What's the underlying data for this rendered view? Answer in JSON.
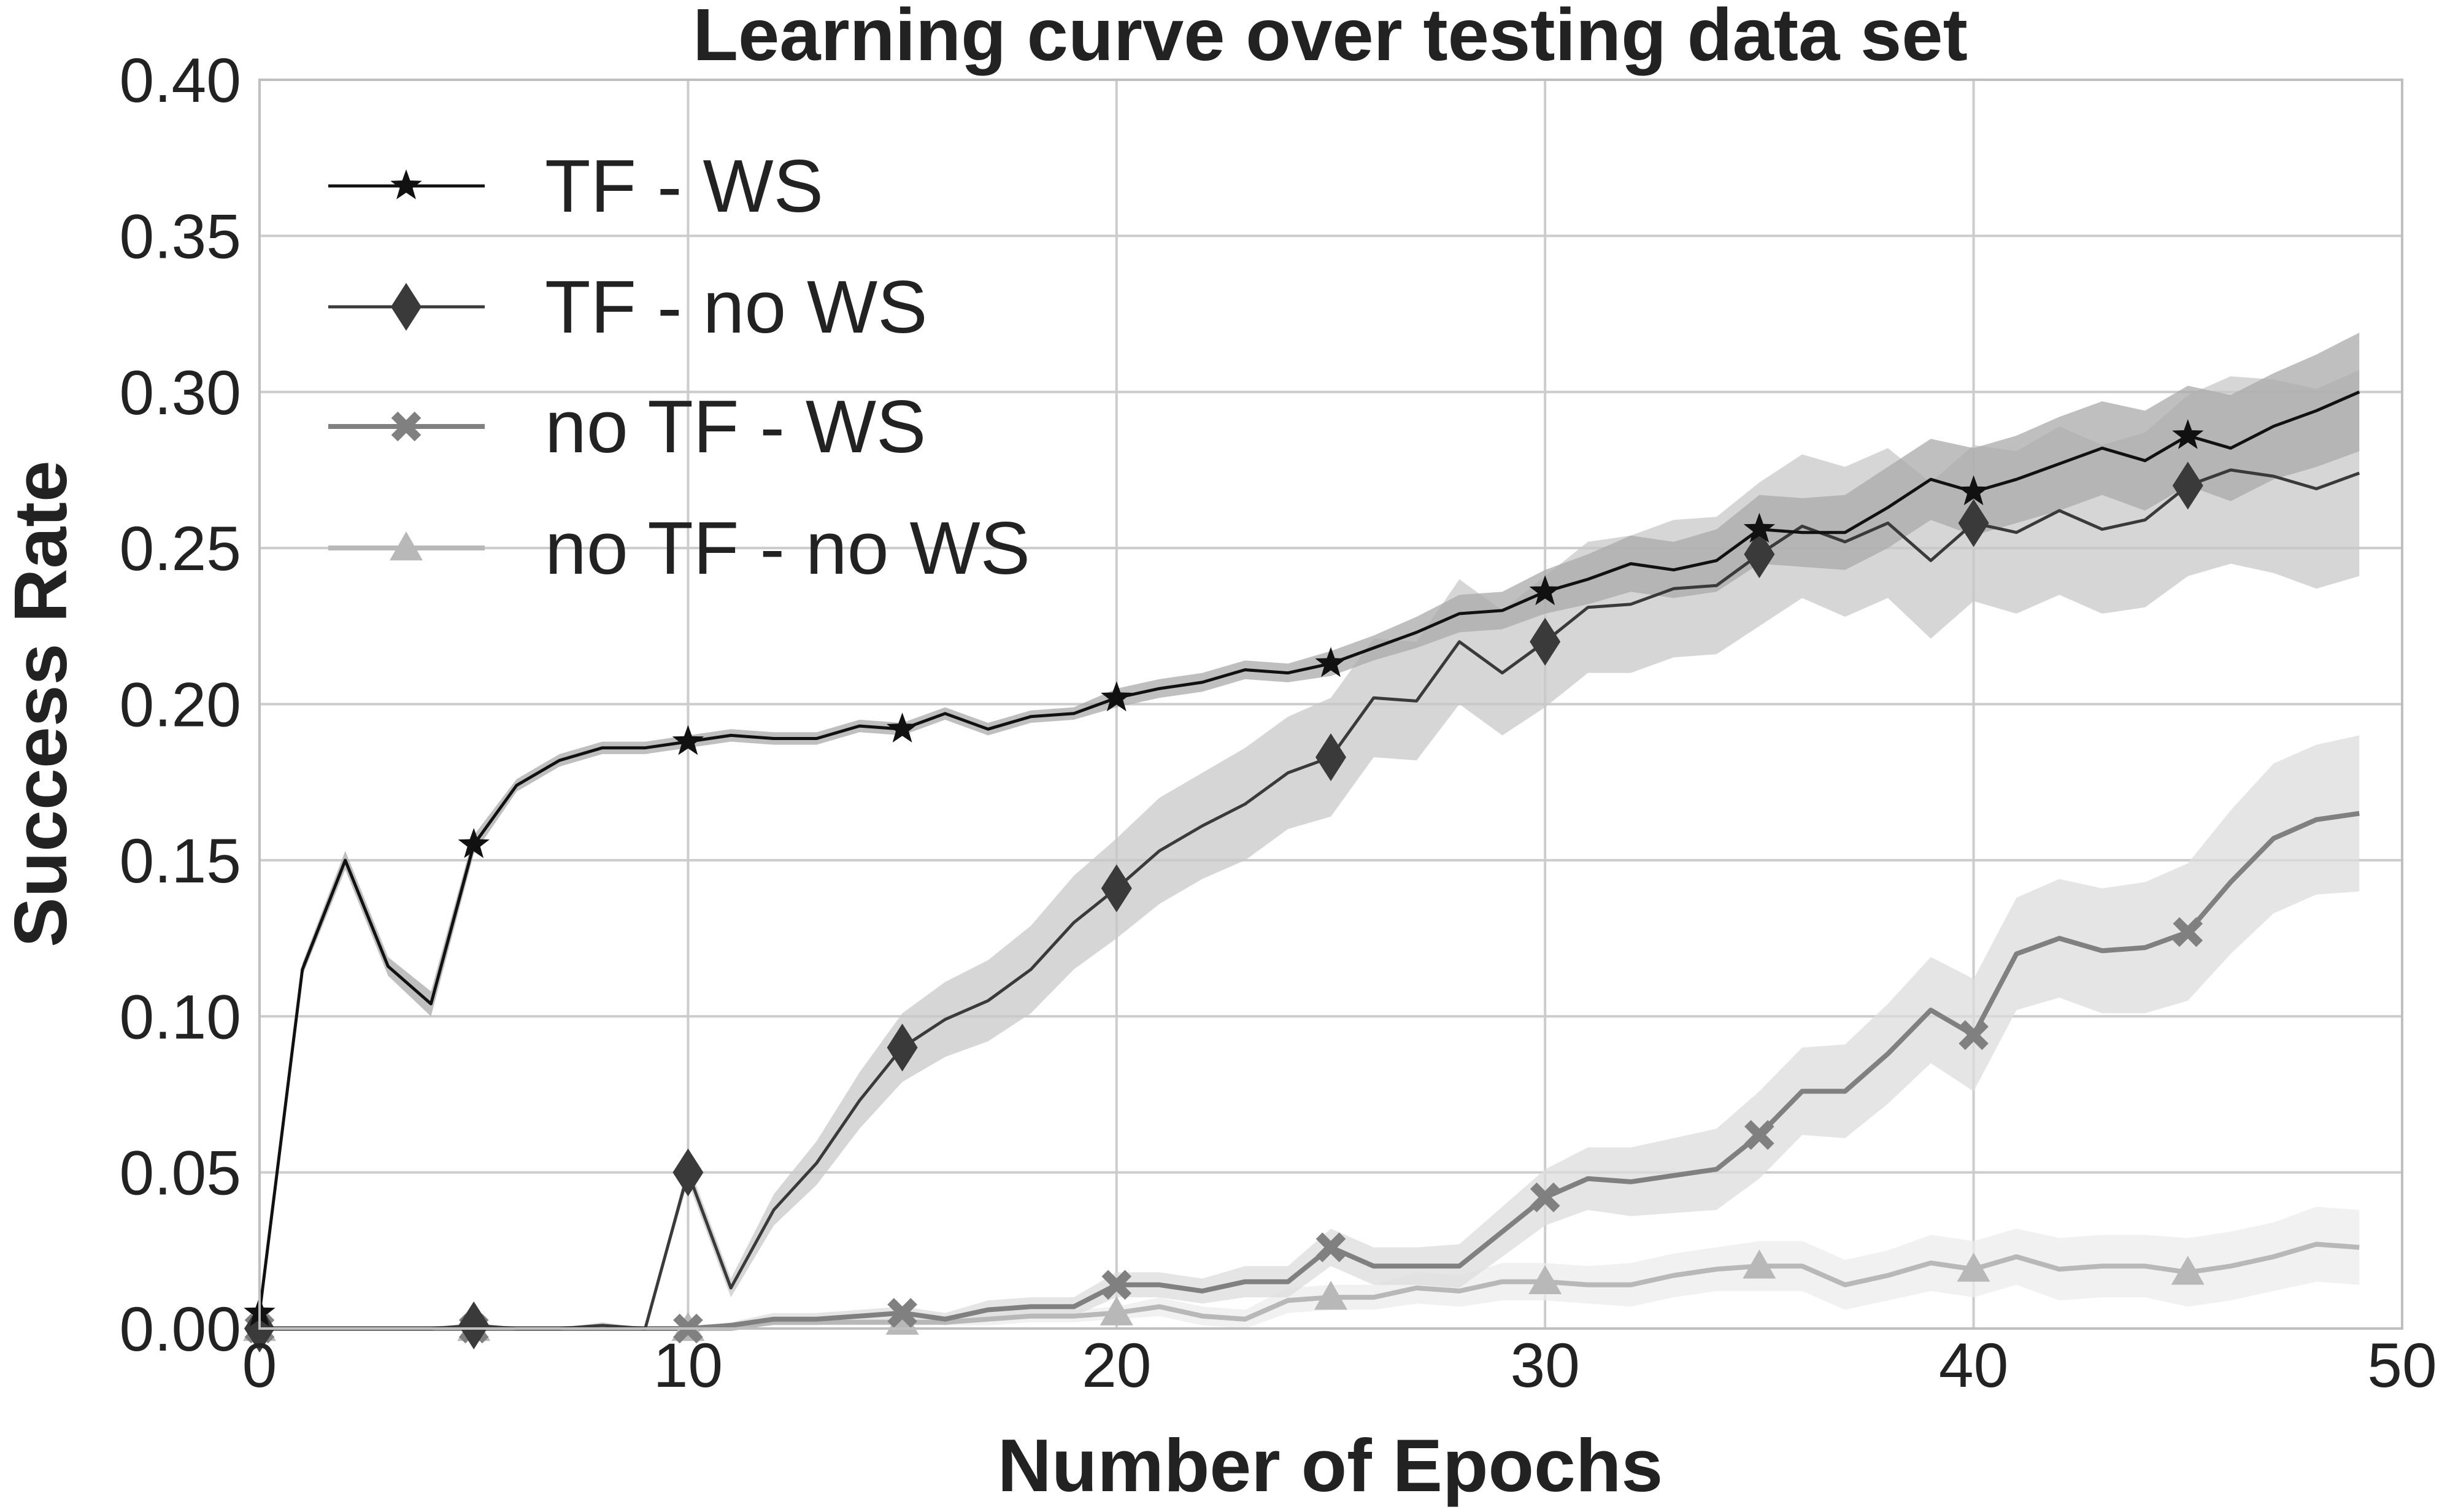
{
  "chart_data": {
    "type": "line",
    "title": "Learning curve over testing data set",
    "xlabel": "Number of Epochs",
    "ylabel": "Success Rate",
    "xlim": [
      0,
      50
    ],
    "ylim": [
      0,
      0.4
    ],
    "x_ticks": [
      0,
      10,
      20,
      30,
      40,
      50
    ],
    "x_tick_labels": [
      "0",
      "10",
      "20",
      "30",
      "40",
      "50"
    ],
    "y_ticks": [
      0,
      0.05,
      0.1,
      0.15,
      0.2,
      0.25,
      0.3,
      0.35,
      0.4
    ],
    "y_tick_labels": [
      "0.00",
      "0.05",
      "0.10",
      "0.15",
      "0.20",
      "0.25",
      "0.30",
      "0.35",
      "0.40"
    ],
    "grid": true,
    "legend_position": "top-left",
    "marker_every": 5,
    "series": [
      {
        "name": "TF - WS",
        "color": "#111111",
        "band_color": "#aaaaaa",
        "marker": "star",
        "x": [
          0,
          1,
          2,
          3,
          4,
          5,
          6,
          7,
          8,
          9,
          10,
          11,
          12,
          13,
          14,
          15,
          16,
          17,
          18,
          19,
          20,
          21,
          22,
          23,
          24,
          25,
          26,
          27,
          28,
          29,
          30,
          31,
          32,
          33,
          34,
          35,
          36,
          37,
          38,
          39,
          40,
          41,
          42,
          43,
          44,
          45,
          46,
          47,
          48,
          49
        ],
        "y": [
          0.005,
          0.115,
          0.15,
          0.116,
          0.104,
          0.155,
          0.174,
          0.182,
          0.186,
          0.186,
          0.188,
          0.19,
          0.189,
          0.189,
          0.193,
          0.192,
          0.197,
          0.192,
          0.196,
          0.197,
          0.202,
          0.205,
          0.207,
          0.211,
          0.21,
          0.213,
          0.218,
          0.223,
          0.229,
          0.23,
          0.236,
          0.24,
          0.245,
          0.243,
          0.246,
          0.256,
          0.255,
          0.255,
          0.263,
          0.272,
          0.268,
          0.272,
          0.277,
          0.282,
          0.278,
          0.286,
          0.282,
          0.289,
          0.294,
          0.3
        ],
        "band": [
          0.001,
          0.002,
          0.003,
          0.003,
          0.004,
          0.003,
          0.002,
          0.002,
          0.002,
          0.002,
          0.002,
          0.002,
          0.002,
          0.002,
          0.002,
          0.002,
          0.002,
          0.002,
          0.002,
          0.002,
          0.003,
          0.003,
          0.003,
          0.003,
          0.003,
          0.004,
          0.004,
          0.005,
          0.006,
          0.006,
          0.007,
          0.008,
          0.009,
          0.009,
          0.01,
          0.011,
          0.011,
          0.012,
          0.013,
          0.013,
          0.014,
          0.014,
          0.015,
          0.015,
          0.016,
          0.016,
          0.017,
          0.017,
          0.018,
          0.019
        ]
      },
      {
        "name": "TF - no WS",
        "color": "#3a3a3a",
        "band_color": "#c8c8c8",
        "marker": "diamond",
        "x": [
          0,
          1,
          2,
          3,
          4,
          5,
          6,
          7,
          8,
          9,
          10,
          11,
          12,
          13,
          14,
          15,
          16,
          17,
          18,
          19,
          20,
          21,
          22,
          23,
          24,
          25,
          26,
          27,
          28,
          29,
          30,
          31,
          32,
          33,
          34,
          35,
          36,
          37,
          38,
          39,
          40,
          41,
          42,
          43,
          44,
          45,
          46,
          47,
          48,
          49
        ],
        "y": [
          0.0,
          0.0,
          0.0,
          0.0,
          0.0,
          0.001,
          0.0,
          0.0,
          0.001,
          0.0,
          0.05,
          0.013,
          0.038,
          0.053,
          0.073,
          0.09,
          0.099,
          0.105,
          0.115,
          0.13,
          0.141,
          0.153,
          0.161,
          0.168,
          0.178,
          0.183,
          0.202,
          0.201,
          0.22,
          0.21,
          0.22,
          0.231,
          0.232,
          0.237,
          0.238,
          0.248,
          0.257,
          0.252,
          0.258,
          0.246,
          0.258,
          0.255,
          0.262,
          0.256,
          0.259,
          0.27,
          0.275,
          0.273,
          0.269,
          0.274
        ],
        "band": [
          0.0,
          0.0,
          0.0,
          0.0,
          0.0,
          0.001,
          0.0,
          0.0,
          0.001,
          0.0,
          0.003,
          0.003,
          0.005,
          0.007,
          0.009,
          0.011,
          0.012,
          0.013,
          0.014,
          0.015,
          0.016,
          0.017,
          0.017,
          0.018,
          0.018,
          0.019,
          0.019,
          0.019,
          0.02,
          0.02,
          0.021,
          0.021,
          0.022,
          0.022,
          0.022,
          0.023,
          0.023,
          0.024,
          0.024,
          0.025,
          0.025,
          0.026,
          0.027,
          0.027,
          0.028,
          0.029,
          0.03,
          0.031,
          0.032,
          0.033
        ]
      },
      {
        "name": "no TF - WS",
        "color": "#808080",
        "band_color": "#dcdcdc",
        "marker": "x",
        "x": [
          0,
          1,
          2,
          3,
          4,
          5,
          6,
          7,
          8,
          9,
          10,
          11,
          12,
          13,
          14,
          15,
          16,
          17,
          18,
          19,
          20,
          21,
          22,
          23,
          24,
          25,
          26,
          27,
          28,
          29,
          30,
          31,
          32,
          33,
          34,
          35,
          36,
          37,
          38,
          39,
          40,
          41,
          42,
          43,
          44,
          45,
          46,
          47,
          48,
          49
        ],
        "y": [
          0.0,
          0.0,
          0.0,
          0.0,
          0.0,
          0.0,
          0.0,
          0.0,
          0.0,
          0.0,
          0.0,
          0.001,
          0.003,
          0.003,
          0.004,
          0.005,
          0.003,
          0.006,
          0.007,
          0.007,
          0.014,
          0.014,
          0.012,
          0.015,
          0.015,
          0.026,
          0.02,
          0.02,
          0.02,
          0.031,
          0.042,
          0.048,
          0.047,
          0.049,
          0.051,
          0.062,
          0.076,
          0.076,
          0.088,
          0.102,
          0.094,
          0.12,
          0.125,
          0.121,
          0.122,
          0.127,
          0.143,
          0.157,
          0.163,
          0.165
        ],
        "band": [
          0.0,
          0.0,
          0.0,
          0.0,
          0.0,
          0.0,
          0.0,
          0.0,
          0.0,
          0.0,
          0.0,
          0.001,
          0.002,
          0.002,
          0.002,
          0.002,
          0.002,
          0.003,
          0.003,
          0.003,
          0.004,
          0.004,
          0.004,
          0.005,
          0.005,
          0.006,
          0.006,
          0.006,
          0.007,
          0.008,
          0.009,
          0.01,
          0.011,
          0.012,
          0.013,
          0.014,
          0.014,
          0.015,
          0.016,
          0.017,
          0.018,
          0.018,
          0.019,
          0.02,
          0.021,
          0.022,
          0.023,
          0.024,
          0.024,
          0.025
        ]
      },
      {
        "name": "no TF - no WS",
        "color": "#b8b8b8",
        "band_color": "#ececec",
        "marker": "triangle",
        "x": [
          0,
          1,
          2,
          3,
          4,
          5,
          6,
          7,
          8,
          9,
          10,
          11,
          12,
          13,
          14,
          15,
          16,
          17,
          18,
          19,
          20,
          21,
          22,
          23,
          24,
          25,
          26,
          27,
          28,
          29,
          30,
          31,
          32,
          33,
          34,
          35,
          36,
          37,
          38,
          39,
          40,
          41,
          42,
          43,
          44,
          45,
          46,
          47,
          48,
          49
        ],
        "y": [
          0.0,
          0.0,
          0.0,
          0.0,
          0.0,
          0.0,
          0.0,
          0.0,
          0.0,
          0.0,
          0.0,
          0.0,
          0.002,
          0.002,
          0.002,
          0.002,
          0.002,
          0.003,
          0.004,
          0.004,
          0.005,
          0.007,
          0.004,
          0.003,
          0.009,
          0.01,
          0.01,
          0.013,
          0.012,
          0.015,
          0.015,
          0.014,
          0.014,
          0.017,
          0.019,
          0.02,
          0.02,
          0.014,
          0.017,
          0.021,
          0.019,
          0.023,
          0.019,
          0.02,
          0.02,
          0.018,
          0.02,
          0.023,
          0.027,
          0.026
        ],
        "band": [
          0.0,
          0.0,
          0.0,
          0.0,
          0.0,
          0.0,
          0.0,
          0.0,
          0.0,
          0.0,
          0.0,
          0.0,
          0.001,
          0.001,
          0.001,
          0.001,
          0.001,
          0.002,
          0.002,
          0.002,
          0.002,
          0.003,
          0.003,
          0.003,
          0.004,
          0.004,
          0.004,
          0.005,
          0.005,
          0.006,
          0.006,
          0.006,
          0.007,
          0.007,
          0.007,
          0.008,
          0.008,
          0.008,
          0.008,
          0.009,
          0.009,
          0.009,
          0.01,
          0.01,
          0.01,
          0.011,
          0.011,
          0.011,
          0.012,
          0.012
        ]
      }
    ]
  }
}
